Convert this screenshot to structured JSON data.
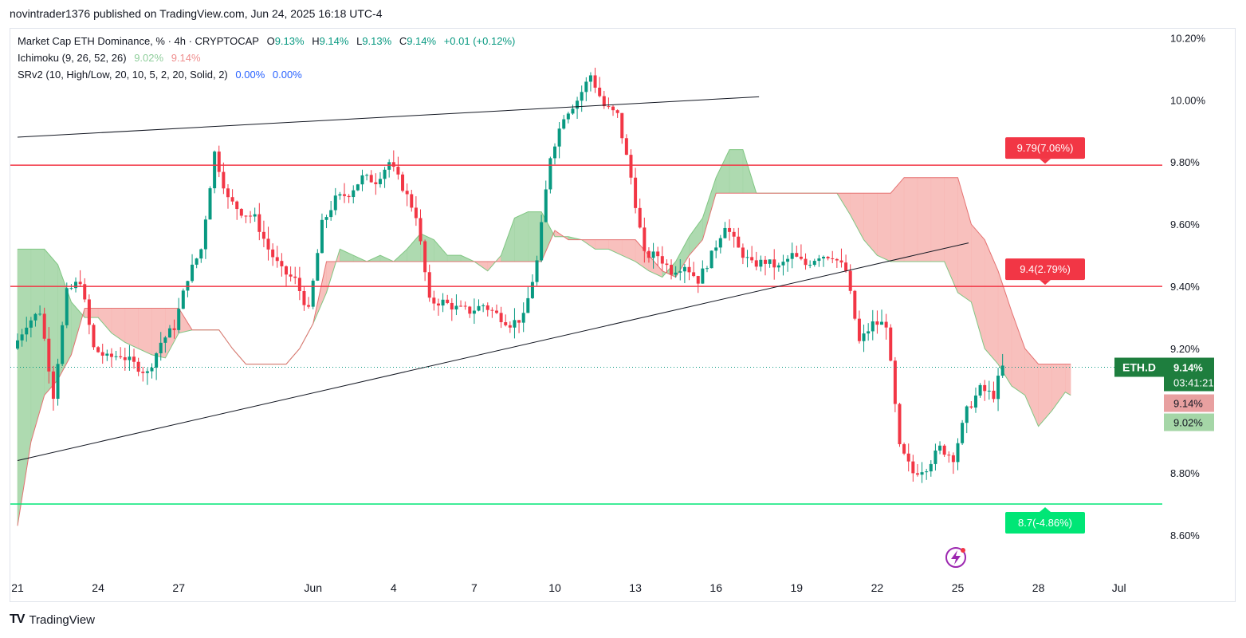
{
  "header": {
    "published": "novintrader1376 published on TradingView.com, Jun 24, 2025 16:18 UTC-4"
  },
  "legend": {
    "symbol_line": "Market Cap ETH Dominance, % · 4h · CRYPTOCAP",
    "ohlc": {
      "o_label": "O",
      "o": "9.13%",
      "h_label": "H",
      "h": "9.14%",
      "l_label": "L",
      "l": "9.13%",
      "c_label": "C",
      "c": "9.14%",
      "change": "+0.01 (+0.12%)"
    },
    "ichimoku": {
      "label": "Ichimoku (9, 26, 52, 26)",
      "v1": "9.02%",
      "v2": "9.14%"
    },
    "srv2": {
      "label": "SRv2 (10, High/Low, 20, 10, 5, 2, 20, Solid, 2)",
      "v1": "0.00%",
      "v2": "0.00%"
    }
  },
  "footer": {
    "logo": "TradingView",
    "mark": "TV"
  },
  "chart_data": {
    "type": "candlestick",
    "title": "Market Cap ETH Dominance, %",
    "timeframe": "4h",
    "ylim": [
      8.5,
      10.27
    ],
    "y_ticks": [
      "10.20%",
      "10.00%",
      "9.80%",
      "9.60%",
      "9.40%",
      "9.20%",
      "8.80%",
      "8.60%"
    ],
    "y_tick_values": [
      10.2,
      10.0,
      9.8,
      9.6,
      9.4,
      9.2,
      8.8,
      8.6
    ],
    "x_ticks": [
      "21",
      "24",
      "27",
      "Jun",
      "4",
      "7",
      "10",
      "13",
      "16",
      "19",
      "22",
      "25",
      "28",
      "Jul"
    ],
    "x_tick_days": [
      0,
      3,
      6,
      11,
      14,
      17,
      20,
      23,
      26,
      29,
      32,
      35,
      38,
      41
    ],
    "price": [
      [
        0,
        9.2
      ],
      [
        0.5,
        9.28
      ],
      [
        1,
        9.32
      ],
      [
        1.5,
        9.05
      ],
      [
        2,
        9.38
      ],
      [
        2.5,
        9.42
      ],
      [
        3,
        9.2
      ],
      [
        3.5,
        9.17
      ],
      [
        4,
        9.18
      ],
      [
        4.5,
        9.15
      ],
      [
        5,
        9.12
      ],
      [
        5.5,
        9.22
      ],
      [
        6,
        9.27
      ],
      [
        6.5,
        9.43
      ],
      [
        7,
        9.52
      ],
      [
        7.5,
        9.83
      ],
      [
        8,
        9.68
      ],
      [
        8.5,
        9.64
      ],
      [
        9,
        9.62
      ],
      [
        9.5,
        9.52
      ],
      [
        10,
        9.45
      ],
      [
        10.5,
        9.42
      ],
      [
        11,
        9.32
      ],
      [
        11.5,
        9.6
      ],
      [
        12,
        9.68
      ],
      [
        12.5,
        9.7
      ],
      [
        13,
        9.75
      ],
      [
        13.5,
        9.74
      ],
      [
        14,
        9.8
      ],
      [
        14.5,
        9.72
      ],
      [
        15,
        9.63
      ],
      [
        15.5,
        9.35
      ],
      [
        16,
        9.35
      ],
      [
        16.5,
        9.33
      ],
      [
        17,
        9.32
      ],
      [
        17.5,
        9.34
      ],
      [
        18,
        9.31
      ],
      [
        18.5,
        9.28
      ],
      [
        19,
        9.3
      ],
      [
        19.5,
        9.48
      ],
      [
        20,
        9.82
      ],
      [
        20.5,
        9.95
      ],
      [
        21,
        10.0
      ],
      [
        21.5,
        10.08
      ],
      [
        22,
        9.98
      ],
      [
        22.5,
        9.95
      ],
      [
        23,
        9.75
      ],
      [
        23.5,
        9.5
      ],
      [
        24,
        9.5
      ],
      [
        24.5,
        9.45
      ],
      [
        25,
        9.47
      ],
      [
        25.5,
        9.42
      ],
      [
        26,
        9.5
      ],
      [
        26.5,
        9.6
      ],
      [
        27,
        9.52
      ],
      [
        27.5,
        9.47
      ],
      [
        28,
        9.48
      ],
      [
        28.5,
        9.46
      ],
      [
        29,
        9.5
      ],
      [
        29.5,
        9.47
      ],
      [
        30,
        9.5
      ],
      [
        30.5,
        9.5
      ],
      [
        31,
        9.45
      ],
      [
        31.5,
        9.22
      ],
      [
        32,
        9.28
      ],
      [
        32.5,
        9.28
      ],
      [
        33,
        8.88
      ],
      [
        33.5,
        8.8
      ],
      [
        34,
        8.82
      ],
      [
        34.5,
        8.88
      ],
      [
        35,
        8.85
      ],
      [
        35.5,
        9.0
      ],
      [
        36,
        9.07
      ],
      [
        36.5,
        9.05
      ],
      [
        36.8,
        9.14
      ]
    ],
    "last_price": "9.14%",
    "countdown": "03:41:21",
    "symbol": "ETH.D",
    "levels": [
      {
        "price": 9.79,
        "label": "9.79(7.06%)",
        "color": "#f23645"
      },
      {
        "price": 9.4,
        "label": "9.4(2.79%)",
        "color": "#f23645"
      },
      {
        "price": 8.7,
        "label": "8.7(-4.86%)",
        "color": "#00e676"
      }
    ],
    "trendlines": [
      {
        "points": [
          [
            0,
            9.88
          ],
          [
            27.6,
            10.01
          ]
        ],
        "color": "#131722"
      },
      {
        "points": [
          [
            0,
            8.84
          ],
          [
            35.4,
            9.54
          ]
        ],
        "color": "#131722"
      }
    ],
    "ichimoku": {
      "senkou_a": [
        [
          0,
          9.52
        ],
        [
          0.5,
          9.52
        ],
        [
          1,
          9.52
        ],
        [
          1.5,
          9.47
        ],
        [
          2,
          9.35
        ],
        [
          2.5,
          9.3
        ],
        [
          3,
          9.3
        ],
        [
          3.5,
          9.25
        ],
        [
          4,
          9.22
        ],
        [
          4.5,
          9.2
        ],
        [
          5,
          9.18
        ],
        [
          5.5,
          9.17
        ],
        [
          6,
          9.25
        ],
        [
          6.5,
          9.26
        ],
        [
          7,
          9.26
        ],
        [
          7.5,
          9.26
        ],
        [
          8,
          9.2
        ],
        [
          8.5,
          9.15
        ],
        [
          9,
          9.15
        ],
        [
          9.5,
          9.15
        ],
        [
          10,
          9.15
        ],
        [
          10.5,
          9.2
        ],
        [
          11,
          9.28
        ],
        [
          11.5,
          9.38
        ],
        [
          12,
          9.52
        ],
        [
          12.5,
          9.5
        ],
        [
          13,
          9.48
        ],
        [
          13.5,
          9.5
        ],
        [
          14,
          9.48
        ],
        [
          14.5,
          9.52
        ],
        [
          15,
          9.57
        ],
        [
          15.5,
          9.55
        ],
        [
          16,
          9.5
        ],
        [
          16.5,
          9.5
        ],
        [
          17,
          9.48
        ],
        [
          17.5,
          9.45
        ],
        [
          18,
          9.5
        ],
        [
          18.5,
          9.62
        ],
        [
          19,
          9.64
        ],
        [
          19.5,
          9.64
        ],
        [
          20,
          9.56
        ],
        [
          20.5,
          9.56
        ],
        [
          21,
          9.55
        ],
        [
          21.5,
          9.52
        ],
        [
          22,
          9.52
        ],
        [
          22.5,
          9.5
        ],
        [
          23,
          9.48
        ],
        [
          23.5,
          9.45
        ],
        [
          24,
          9.43
        ],
        [
          24.5,
          9.48
        ],
        [
          25,
          9.56
        ],
        [
          25.5,
          9.62
        ],
        [
          26,
          9.75
        ],
        [
          26.5,
          9.84
        ],
        [
          27,
          9.84
        ],
        [
          27.5,
          9.7
        ],
        [
          28,
          9.7
        ],
        [
          28.5,
          9.7
        ],
        [
          29,
          9.7
        ],
        [
          29.5,
          9.7
        ],
        [
          30,
          9.7
        ],
        [
          30.5,
          9.7
        ],
        [
          31,
          9.63
        ],
        [
          31.5,
          9.55
        ],
        [
          32,
          9.5
        ],
        [
          32.5,
          9.48
        ],
        [
          33,
          9.48
        ],
        [
          33.5,
          9.48
        ],
        [
          34,
          9.48
        ],
        [
          34.5,
          9.48
        ],
        [
          35,
          9.38
        ],
        [
          35.5,
          9.35
        ],
        [
          36,
          9.2
        ],
        [
          36.5,
          9.15
        ],
        [
          37,
          9.08
        ],
        [
          37.5,
          9.05
        ],
        [
          38,
          8.95
        ],
        [
          38.5,
          9.0
        ],
        [
          39,
          9.06
        ],
        [
          39.2,
          9.05
        ]
      ],
      "senkou_b": [
        [
          0,
          8.63
        ],
        [
          0.5,
          8.9
        ],
        [
          1,
          9.05
        ],
        [
          1.5,
          9.1
        ],
        [
          2,
          9.18
        ],
        [
          2.5,
          9.33
        ],
        [
          3,
          9.33
        ],
        [
          3.5,
          9.33
        ],
        [
          4,
          9.33
        ],
        [
          4.5,
          9.33
        ],
        [
          5,
          9.33
        ],
        [
          5.5,
          9.33
        ],
        [
          6,
          9.33
        ],
        [
          6.5,
          9.26
        ],
        [
          7,
          9.26
        ],
        [
          7.5,
          9.26
        ],
        [
          8,
          9.2
        ],
        [
          8.5,
          9.15
        ],
        [
          9,
          9.15
        ],
        [
          9.5,
          9.15
        ],
        [
          10,
          9.15
        ],
        [
          10.5,
          9.2
        ],
        [
          11,
          9.28
        ],
        [
          11.5,
          9.48
        ],
        [
          12,
          9.48
        ],
        [
          12.5,
          9.48
        ],
        [
          13,
          9.48
        ],
        [
          13.5,
          9.48
        ],
        [
          14,
          9.48
        ],
        [
          14.5,
          9.48
        ],
        [
          15,
          9.48
        ],
        [
          15.5,
          9.48
        ],
        [
          16,
          9.48
        ],
        [
          16.5,
          9.48
        ],
        [
          17,
          9.48
        ],
        [
          17.5,
          9.48
        ],
        [
          18,
          9.48
        ],
        [
          18.5,
          9.48
        ],
        [
          19,
          9.48
        ],
        [
          19.5,
          9.48
        ],
        [
          20,
          9.58
        ],
        [
          20.5,
          9.55
        ],
        [
          21,
          9.55
        ],
        [
          21.5,
          9.55
        ],
        [
          22,
          9.55
        ],
        [
          22.5,
          9.55
        ],
        [
          23,
          9.55
        ],
        [
          23.5,
          9.5
        ],
        [
          24,
          9.45
        ],
        [
          24.5,
          9.43
        ],
        [
          25,
          9.5
        ],
        [
          25.5,
          9.55
        ],
        [
          26,
          9.7
        ],
        [
          26.5,
          9.7
        ],
        [
          27,
          9.7
        ],
        [
          27.5,
          9.7
        ],
        [
          28,
          9.7
        ],
        [
          28.5,
          9.7
        ],
        [
          29,
          9.7
        ],
        [
          29.5,
          9.7
        ],
        [
          30,
          9.7
        ],
        [
          30.5,
          9.7
        ],
        [
          31,
          9.7
        ],
        [
          31.5,
          9.7
        ],
        [
          32,
          9.7
        ],
        [
          32.5,
          9.7
        ],
        [
          33,
          9.75
        ],
        [
          33.5,
          9.75
        ],
        [
          34,
          9.75
        ],
        [
          34.5,
          9.75
        ],
        [
          35,
          9.75
        ],
        [
          35.5,
          9.6
        ],
        [
          36,
          9.55
        ],
        [
          36.5,
          9.45
        ],
        [
          37,
          9.32
        ],
        [
          37.5,
          9.2
        ],
        [
          38,
          9.15
        ],
        [
          38.5,
          9.15
        ],
        [
          39,
          9.15
        ],
        [
          39.2,
          9.15
        ]
      ]
    },
    "y_markers": [
      {
        "value": 9.14,
        "label": "9.14%",
        "color": "#e8a0a0"
      },
      {
        "value": 9.02,
        "label": "9.02%",
        "color": "#a5d6a7"
      }
    ]
  }
}
